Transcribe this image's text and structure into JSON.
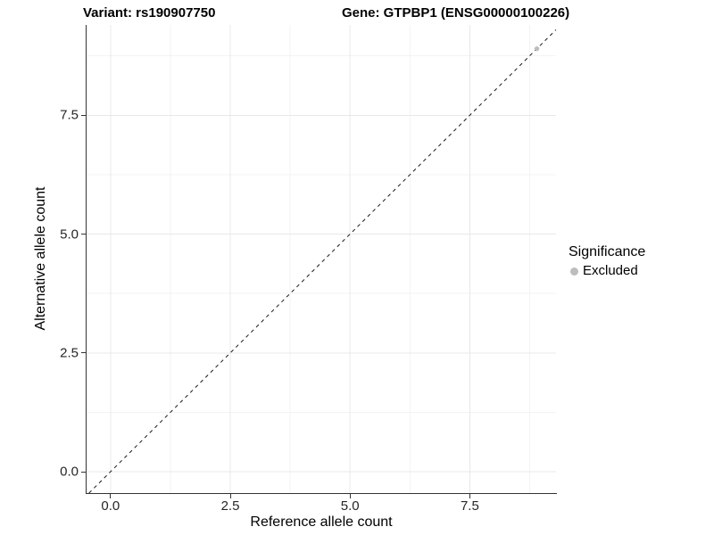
{
  "title": {
    "left": "Variant: rs190907750",
    "right": "Gene: GTPBP1 (ENSG00000100226)"
  },
  "axes": {
    "x_label": "Reference allele count",
    "y_label": "Alternative allele count"
  },
  "legend": {
    "title": "Significance",
    "items": [
      {
        "label": "Excluded",
        "color": "#bdbdbd"
      }
    ]
  },
  "colors": {
    "background": "#ffffff",
    "grid_major": "#e8e8e8",
    "grid_minor": "#f3f3f3",
    "axis_line": "#333333",
    "dashed_line": "#1a1a1a",
    "point": "#bdbdbd",
    "tick_mark": "#333333"
  },
  "chart_data": {
    "type": "scatter",
    "title": "Variant: rs190907750   Gene: GTPBP1 (ENSG00000100226)",
    "xlabel": "Reference allele count",
    "ylabel": "Alternative allele count",
    "xlim": [
      -0.5,
      9.3
    ],
    "ylim": [
      -0.45,
      9.4
    ],
    "x_ticks": [
      0,
      2.5,
      5,
      7.5
    ],
    "x_tick_labels": [
      "0.0",
      "2.5",
      "5.0",
      "7.5"
    ],
    "x_minor_ticks": [
      1.25,
      3.75,
      6.25,
      8.75
    ],
    "y_ticks": [
      0,
      2.5,
      5,
      7.5
    ],
    "y_tick_labels": [
      "0.0",
      "2.5",
      "5.0",
      "7.5"
    ],
    "y_minor_ticks": [
      1.25,
      3.75,
      6.25,
      8.75
    ],
    "grid": true,
    "legend_position": "right",
    "reference_line": {
      "kind": "identity",
      "slope": 1,
      "intercept": 0,
      "style": "dashed"
    },
    "series": [
      {
        "name": "Excluded",
        "color": "#bdbdbd",
        "points": [
          {
            "x": 8.9,
            "y": 8.9
          }
        ]
      }
    ]
  }
}
